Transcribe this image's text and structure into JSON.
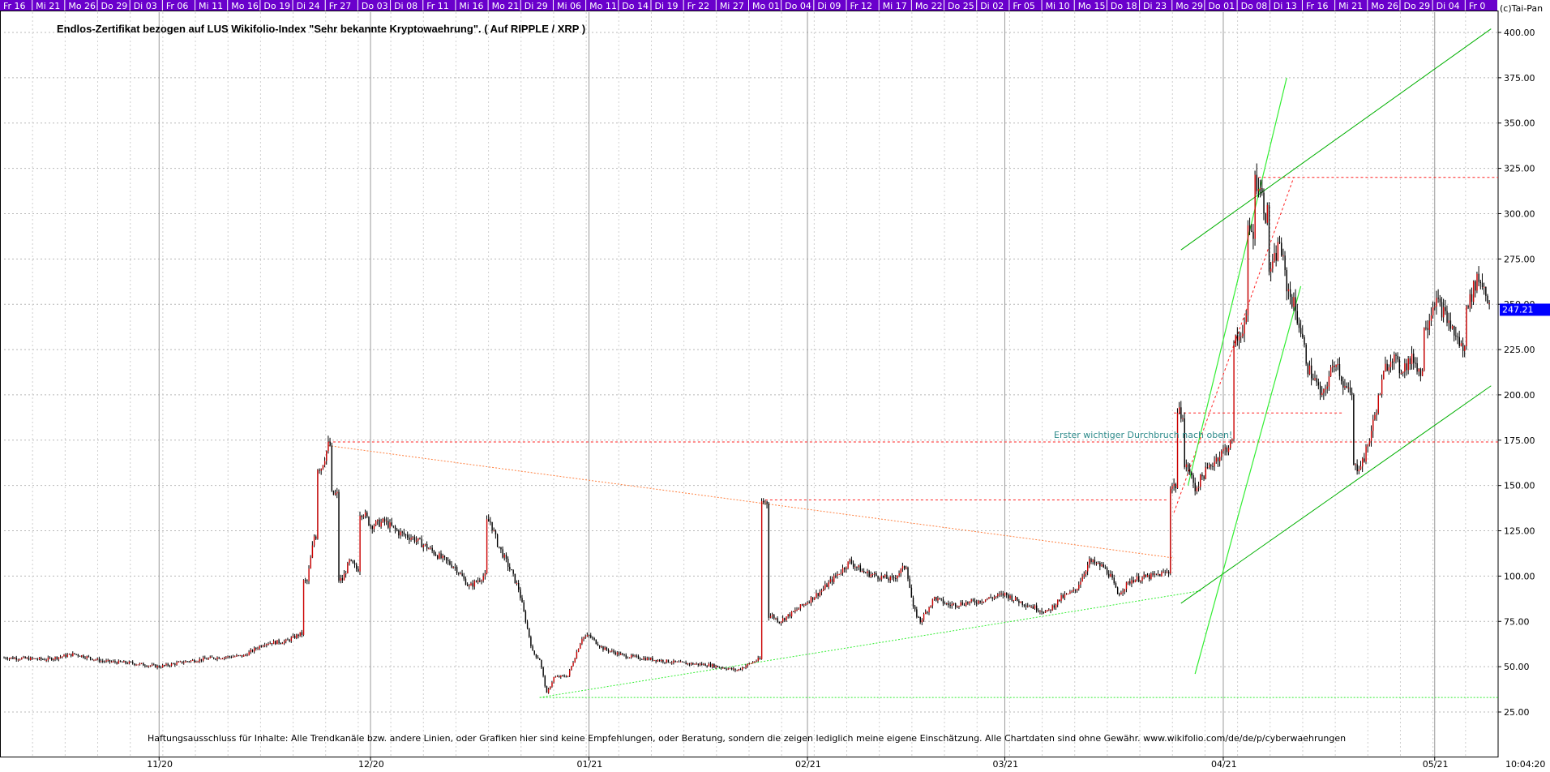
{
  "title": "Endlos-Zertifikat bezogen auf LUS Wikifolio-Index \"Sehr bekannte Kryptowaehrung\". ( Auf RIPPLE / XRP )",
  "copyright": "(c)Tai-Pan",
  "disclaimer": "Haftungsausschluss für Inhalte: Alle Trendkanäle bzw. andere Linien, oder Grafiken hier sind keine Empfehlungen, oder Beratung, sondern die zeigen lediglich meine eigene Einschätzung. Alle Chartdaten sind ohne Gewähr.  www.wikifolio.com/de/de/p/cyberwaehrungen",
  "annotation": "Erster wichtiger Durchbruch nach oben!",
  "clock": "10:04:20",
  "last_price_label": "247.21",
  "colors": {
    "background": "#ffffff",
    "top_bar": "#6a00cc",
    "grid": "#b8b8b8",
    "candle": "#000000",
    "candle_up": "#cc0000",
    "red_dashed": "#ff2020",
    "orange_dashed": "#ff8040",
    "green_line": "#00b000",
    "bright_green": "#33ee33",
    "price_tag": "#0000ff",
    "annotation": "#2e8b8b"
  },
  "top_day_labels": [
    "Fr 16",
    "Mi 21",
    "Mo 26",
    "Do 29",
    "Di 03",
    "Fr 06",
    "Mi 11",
    "Mo 16",
    "Do 19",
    "Di 24",
    "Fr 27",
    "Do 03",
    "Di 08",
    "Fr 11",
    "Mi 16",
    "Mo 21",
    "Di 29",
    "Mi 06",
    "Mo 11",
    "Do 14",
    "Di 19",
    "Fr 22",
    "Mi 27",
    "Mo 01",
    "Do 04",
    "Di 09",
    "Fr 12",
    "Mi 17",
    "Mo 22",
    "Do 25",
    "Di 02",
    "Fr 05",
    "Mi 10",
    "Mo 15",
    "Do 18",
    "Di 23",
    "Mo 29",
    "Do 01",
    "Do 08",
    "Di 13",
    "Fr 16",
    "Mi 21",
    "Mo 26",
    "Do 29",
    "Di 04",
    "Fr 0"
  ],
  "chart_data": {
    "type": "candlestick",
    "title": "Endlos-Zertifikat bezogen auf LUS Wikifolio-Index \"Sehr bekannte Kryptowaehrung\". ( Auf RIPPLE / XRP )",
    "xlabel": "",
    "ylabel": "",
    "ylim": [
      15,
      410
    ],
    "y_ticks": [
      25,
      50,
      75,
      100,
      125,
      150,
      175,
      200,
      225,
      250,
      275,
      300,
      325,
      350,
      375,
      400
    ],
    "y_tick_labels": [
      "25.00",
      "50.00",
      "75.00",
      "100.00",
      "125.00",
      "150.00",
      "175.00",
      "200.00",
      "225.00",
      "250.00",
      "275.00",
      "300.00",
      "325.00",
      "350.00",
      "375.00",
      "400.00"
    ],
    "x_month_labels": [
      {
        "label": "11/20",
        "day": 22
      },
      {
        "label": "12/20",
        "day": 52
      },
      {
        "label": "01/21",
        "day": 83
      },
      {
        "label": "02/21",
        "day": 114
      },
      {
        "label": "03/21",
        "day": 142
      },
      {
        "label": "04/21",
        "day": 173
      },
      {
        "label": "05/21",
        "day": 203
      }
    ],
    "x_range_days": [
      0,
      212
    ],
    "grid": true,
    "last_price": 247.21,
    "price_path": [
      [
        0,
        55
      ],
      [
        6,
        54
      ],
      [
        10,
        57
      ],
      [
        14,
        53
      ],
      [
        18,
        52
      ],
      [
        22,
        50
      ],
      [
        26,
        53
      ],
      [
        30,
        55
      ],
      [
        34,
        56
      ],
      [
        37,
        63
      ],
      [
        40,
        64
      ],
      [
        42,
        68
      ],
      [
        43,
        97
      ],
      [
        44,
        122
      ],
      [
        45,
        160
      ],
      [
        46,
        172
      ],
      [
        47,
        145
      ],
      [
        48,
        98
      ],
      [
        49,
        108
      ],
      [
        50,
        104
      ],
      [
        51,
        135
      ],
      [
        52,
        128
      ],
      [
        54,
        130
      ],
      [
        56,
        124
      ],
      [
        58,
        121
      ],
      [
        60,
        116
      ],
      [
        62,
        110
      ],
      [
        64,
        105
      ],
      [
        66,
        94
      ],
      [
        68,
        100
      ],
      [
        69,
        130
      ],
      [
        70,
        118
      ],
      [
        72,
        102
      ],
      [
        73,
        93
      ],
      [
        75,
        58
      ],
      [
        76,
        54
      ],
      [
        77,
        35
      ],
      [
        78,
        44
      ],
      [
        80,
        45
      ],
      [
        82,
        66
      ],
      [
        83,
        67
      ],
      [
        85,
        60
      ],
      [
        88,
        56
      ],
      [
        92,
        54
      ],
      [
        96,
        52
      ],
      [
        100,
        51
      ],
      [
        104,
        48
      ],
      [
        107,
        54
      ],
      [
        108,
        141
      ],
      [
        109,
        78
      ],
      [
        110,
        75
      ],
      [
        112,
        80
      ],
      [
        114,
        86
      ],
      [
        116,
        92
      ],
      [
        118,
        100
      ],
      [
        120,
        108
      ],
      [
        122,
        102
      ],
      [
        124,
        100
      ],
      [
        126,
        98
      ],
      [
        128,
        106
      ],
      [
        129,
        82
      ],
      [
        130,
        75
      ],
      [
        132,
        88
      ],
      [
        134,
        84
      ],
      [
        136,
        85
      ],
      [
        138,
        86
      ],
      [
        140,
        88
      ],
      [
        142,
        90
      ],
      [
        144,
        86
      ],
      [
        146,
        83
      ],
      [
        148,
        80
      ],
      [
        150,
        88
      ],
      [
        152,
        92
      ],
      [
        154,
        108
      ],
      [
        156,
        105
      ],
      [
        157,
        100
      ],
      [
        158,
        90
      ],
      [
        160,
        98
      ],
      [
        163,
        100
      ],
      [
        165,
        102
      ],
      [
        166,
        150
      ],
      [
        167,
        190
      ],
      [
        168,
        160
      ],
      [
        169,
        148
      ],
      [
        170,
        155
      ],
      [
        172,
        165
      ],
      [
        174,
        173
      ],
      [
        175,
        230
      ],
      [
        176,
        240
      ],
      [
        177,
        290
      ],
      [
        178,
        318
      ],
      [
        179,
        300
      ],
      [
        180,
        270
      ],
      [
        181,
        285
      ],
      [
        182,
        260
      ],
      [
        183,
        250
      ],
      [
        184,
        235
      ],
      [
        185,
        215
      ],
      [
        186,
        208
      ],
      [
        187,
        198
      ],
      [
        188,
        210
      ],
      [
        189,
        220
      ],
      [
        190,
        206
      ],
      [
        191,
        200
      ],
      [
        192,
        160
      ],
      [
        193,
        165
      ],
      [
        194,
        180
      ],
      [
        196,
        215
      ],
      [
        197,
        222
      ],
      [
        198,
        214
      ],
      [
        200,
        220
      ],
      [
        201,
        212
      ],
      [
        202,
        240
      ],
      [
        203,
        253
      ],
      [
        204,
        247
      ],
      [
        205,
        240
      ],
      [
        206,
        232
      ],
      [
        207,
        225
      ],
      [
        208,
        252
      ],
      [
        209,
        265
      ],
      [
        210,
        260
      ],
      [
        211,
        247
      ]
    ],
    "annotations_lines": [
      {
        "kind": "horizontal",
        "style": "red-dashed",
        "y": 174,
        "x_from": 46,
        "x_to": 212
      },
      {
        "kind": "horizontal",
        "style": "red-dashed",
        "y": 142,
        "x_from": 108,
        "x_to": 165
      },
      {
        "kind": "horizontal",
        "style": "red-dashed",
        "y": 190,
        "x_from": 166,
        "x_to": 190
      },
      {
        "kind": "horizontal",
        "style": "red-dashed",
        "y": 320,
        "x_from": 178,
        "x_to": 212
      },
      {
        "kind": "segment",
        "style": "orange-dashed",
        "from": [
          46,
          172
        ],
        "to": [
          166,
          110
        ]
      },
      {
        "kind": "segment",
        "style": "red-dashed",
        "from": [
          166,
          135
        ],
        "to": [
          183,
          320
        ]
      },
      {
        "kind": "horizontal",
        "style": "green-dotted",
        "y": 33,
        "x_from": 76,
        "x_to": 212
      },
      {
        "kind": "segment",
        "style": "green-dotted",
        "from": [
          76,
          33
        ],
        "to": [
          170,
          92
        ]
      },
      {
        "kind": "segment",
        "style": "green-solid",
        "from": [
          167,
          280
        ],
        "to": [
          211,
          402
        ]
      },
      {
        "kind": "segment",
        "style": "green-solid",
        "from": [
          167,
          85
        ],
        "to": [
          211,
          205
        ]
      },
      {
        "kind": "segment",
        "style": "bright-green",
        "from": [
          168,
          150
        ],
        "to": [
          182,
          375
        ]
      },
      {
        "kind": "segment",
        "style": "bright-green",
        "from": [
          169,
          46
        ],
        "to": [
          184,
          260
        ]
      }
    ]
  }
}
